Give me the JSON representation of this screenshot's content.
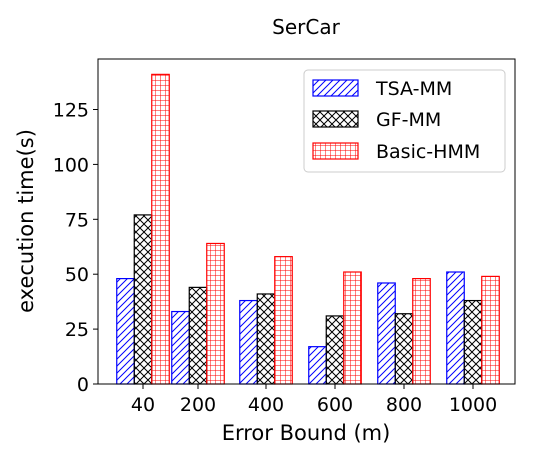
{
  "chart_data": {
    "type": "bar",
    "title": "SerCar",
    "xlabel": "Error Bound (m)",
    "ylabel": "execution time(s)",
    "categories": [
      "40",
      "200",
      "400",
      "600",
      "800",
      "1000"
    ],
    "ylim": [
      0,
      148
    ],
    "yticks": [
      0,
      25,
      50,
      75,
      100,
      125
    ],
    "grid": false,
    "legend_position": "top-right",
    "series": [
      {
        "name": "TSA-MM",
        "color": "#0000ff",
        "hatch": "diagonal",
        "values": [
          48,
          33,
          38,
          17,
          46,
          51
        ]
      },
      {
        "name": "GF-MM",
        "color": "#000000",
        "hatch": "crosshatch",
        "values": [
          77,
          44,
          41,
          31,
          32,
          38
        ]
      },
      {
        "name": "Basic-HMM",
        "color": "#ff0000",
        "hatch": "grid",
        "values": [
          141,
          64,
          58,
          51,
          48,
          49
        ]
      }
    ]
  }
}
